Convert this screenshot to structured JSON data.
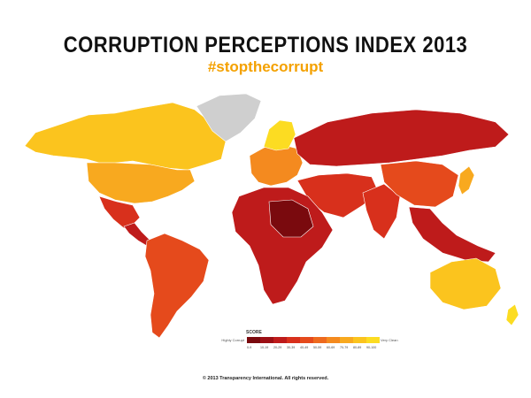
{
  "header": {
    "title": "CORRUPTION PERCEPTIONS INDEX 2013",
    "hashtag": "#stopthecorrupt"
  },
  "legend": {
    "title": "SCORE",
    "low_label": "Highly Corrupt",
    "high_label": "Very Clean",
    "bins": [
      {
        "label": "0-9",
        "color": "#7a0a0e"
      },
      {
        "label": "10-19",
        "color": "#9c0f14"
      },
      {
        "label": "20-29",
        "color": "#be1b1b"
      },
      {
        "label": "30-39",
        "color": "#d8301c"
      },
      {
        "label": "40-49",
        "color": "#e54a1c"
      },
      {
        "label": "50-59",
        "color": "#ee6a1e"
      },
      {
        "label": "60-69",
        "color": "#f48a1f"
      },
      {
        "label": "70-79",
        "color": "#f8a91f"
      },
      {
        "label": "80-89",
        "color": "#fbc41e"
      },
      {
        "label": "90-100",
        "color": "#fcdc22"
      }
    ],
    "no_data_color": "#cfcfcf"
  },
  "regions": [
    {
      "name": "alaska-canada",
      "color": "#fbc41e"
    },
    {
      "name": "greenland",
      "color": "#cfcfcf"
    },
    {
      "name": "usa",
      "color": "#f8a91f"
    },
    {
      "name": "mexico",
      "color": "#d8301c"
    },
    {
      "name": "central-america",
      "color": "#be1b1b"
    },
    {
      "name": "south-america",
      "color": "#e54a1c"
    },
    {
      "name": "europe",
      "color": "#f48a1f"
    },
    {
      "name": "scandinavia",
      "color": "#fcdc22"
    },
    {
      "name": "russia",
      "color": "#be1b1b"
    },
    {
      "name": "middle-east",
      "color": "#d8301c"
    },
    {
      "name": "africa",
      "color": "#be1b1b"
    },
    {
      "name": "africa-core",
      "color": "#7a0a0e"
    },
    {
      "name": "south-asia",
      "color": "#d8301c"
    },
    {
      "name": "china",
      "color": "#e54a1c"
    },
    {
      "name": "southeast-asia",
      "color": "#be1b1b"
    },
    {
      "name": "japan",
      "color": "#f8a91f"
    },
    {
      "name": "australia",
      "color": "#fbc41e"
    },
    {
      "name": "new-zealand",
      "color": "#fcdc22"
    }
  ],
  "footer": {
    "copyright": "© 2013 Transparency International. All rights reserved."
  }
}
